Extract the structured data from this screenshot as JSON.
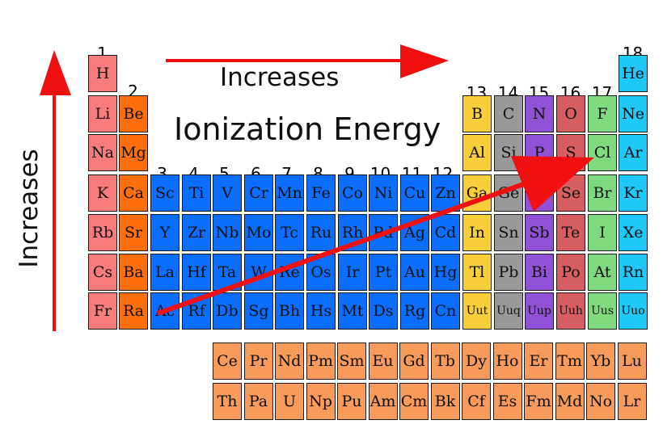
{
  "labels": {
    "increases_top": "Increases",
    "title": "Ionization Energy",
    "increases_left": "Increases"
  },
  "colors": {
    "alkali": "#f87c7c",
    "alkaline_earth": "#fe6e0a",
    "transition": "#0b6eff",
    "post_transition": "#f8ce3a",
    "metalloid": "#999999",
    "nonmetal": "#8f52d6",
    "chalcogen": "#d65e5e",
    "halogen": "#7fd97f",
    "noble_gas": "#1ec8f8",
    "f_block": "#f89a5a",
    "arrow": "#f01010"
  },
  "groups": [
    "1",
    "2",
    "3",
    "4",
    "5",
    "6",
    "7",
    "8",
    "9",
    "10",
    "11",
    "12",
    "13",
    "14",
    "15",
    "16",
    "17",
    "18"
  ],
  "main_table": [
    [
      "H",
      "",
      "",
      "",
      "",
      "",
      "",
      "",
      "",
      "",
      "",
      "",
      "",
      "",
      "",
      "",
      "",
      "He"
    ],
    [
      "Li",
      "Be",
      "",
      "",
      "",
      "",
      "",
      "",
      "",
      "",
      "",
      "",
      "B",
      "C",
      "N",
      "O",
      "F",
      "Ne"
    ],
    [
      "Na",
      "Mg",
      "",
      "",
      "",
      "",
      "",
      "",
      "",
      "",
      "",
      "",
      "Al",
      "Si",
      "P",
      "S",
      "Cl",
      "Ar"
    ],
    [
      "K",
      "Ca",
      "Sc",
      "Ti",
      "V",
      "Cr",
      "Mn",
      "Fe",
      "Co",
      "Ni",
      "Cu",
      "Zn",
      "Ga",
      "Ge",
      "As",
      "Se",
      "Br",
      "Kr"
    ],
    [
      "Rb",
      "Sr",
      "Y",
      "Zr",
      "Nb",
      "Mo",
      "Tc",
      "Ru",
      "Rh",
      "Pd",
      "Ag",
      "Cd",
      "In",
      "Sn",
      "Sb",
      "Te",
      "I",
      "Xe"
    ],
    [
      "Cs",
      "Ba",
      "La",
      "Hf",
      "Ta",
      "W",
      "Re",
      "Os",
      "Ir",
      "Pt",
      "Au",
      "Hg",
      "Tl",
      "Pb",
      "Bi",
      "Po",
      "At",
      "Rn"
    ],
    [
      "Fr",
      "Ra",
      "Ac",
      "Rf",
      "Db",
      "Sg",
      "Bh",
      "Hs",
      "Mt",
      "Ds",
      "Rg",
      "Cn",
      "Uut",
      "Uuq",
      "Uup",
      "Uuh",
      "Uus",
      "Uuo"
    ]
  ],
  "f_block": [
    [
      "Ce",
      "Pr",
      "Nd",
      "Pm",
      "Sm",
      "Eu",
      "Gd",
      "Tb",
      "Dy",
      "Ho",
      "Er",
      "Tm",
      "Yb",
      "Lu"
    ],
    [
      "Th",
      "Pa",
      "U",
      "Np",
      "Pu",
      "Am",
      "Cm",
      "Bk",
      "Cf",
      "Es",
      "Fm",
      "Md",
      "No",
      "Lr"
    ]
  ]
}
